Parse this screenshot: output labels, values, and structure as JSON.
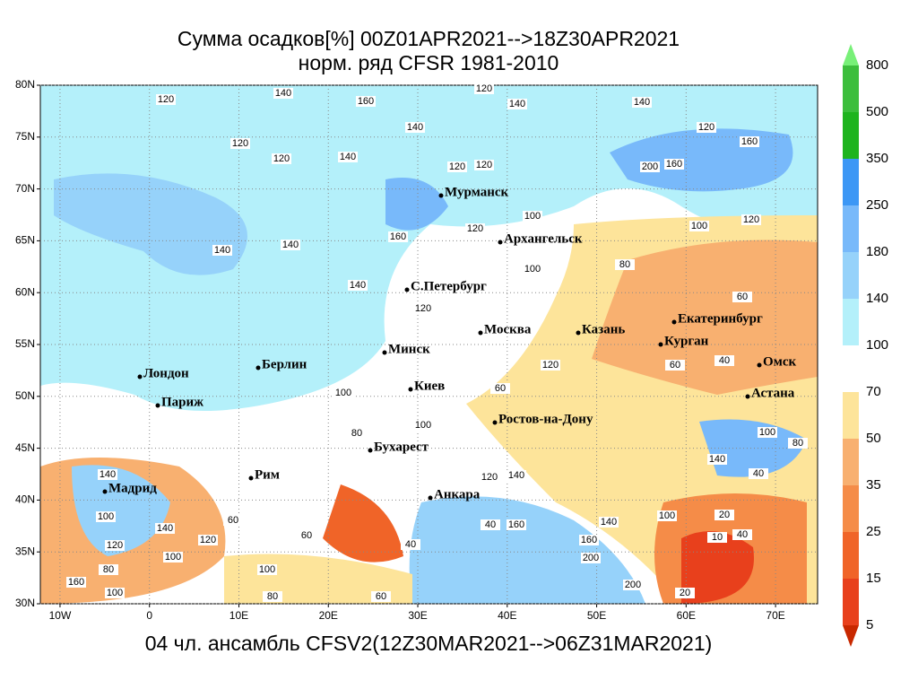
{
  "map": {
    "title": "Сумма осадков[%] 00Z01APR2021-->18Z30APR2021",
    "subtitle": "норм. ряд CFSR 1981-2010",
    "footer": "04 чл. ансамбль CFSV2(12Z30MAR2021-->06Z31MAR2021)",
    "xlim": [
      -12.2,
      74.7
    ],
    "ylim": [
      30,
      80
    ],
    "grid": true,
    "xticks": [
      {
        "value": -10,
        "label": "10W"
      },
      0,
      {
        "value": 10,
        "label": "10E"
      },
      {
        "value": 20,
        "label": "20E"
      },
      {
        "value": 30,
        "label": "30E"
      },
      {
        "value": 40,
        "label": "40E"
      },
      {
        "value": 50,
        "label": "50E"
      },
      {
        "value": 60,
        "label": "60E"
      },
      {
        "value": 70,
        "label": "70E"
      }
    ],
    "yticks": [
      {
        "value": 30,
        "label": "30N"
      },
      {
        "value": 35,
        "label": "35N"
      },
      {
        "value": 40,
        "label": "40N"
      },
      {
        "value": 45,
        "label": "45N"
      },
      {
        "value": 50,
        "label": "50N"
      },
      {
        "value": 55,
        "label": "55N"
      },
      {
        "value": 60,
        "label": "60N"
      },
      {
        "value": 65,
        "label": "65N"
      },
      {
        "value": 70,
        "label": "70N"
      },
      {
        "value": 75,
        "label": "75N"
      },
      {
        "value": 80,
        "label": "80N"
      }
    ],
    "cities": [
      "Мурманск",
      "Архангельск",
      "С.Петербург",
      "Москва",
      "Казань",
      "Екатеринбург",
      "Курган",
      "Омск",
      "Астана",
      "Минск",
      "Берлин",
      "Лондон",
      "Париж",
      "Киев",
      "Ростов-на-Дону",
      "Бухарест",
      "Рим",
      "Мадрид",
      "Анкара"
    ],
    "contour_labels": [
      120,
      140,
      160,
      120,
      140,
      140,
      140,
      120,
      120,
      140,
      120,
      120,
      200,
      160,
      120,
      160,
      100,
      100,
      120,
      120,
      160,
      140,
      140,
      100,
      80,
      60,
      120,
      140,
      120,
      60,
      40,
      60,
      100,
      100,
      80,
      140,
      120,
      140,
      100,
      140,
      120,
      120,
      100,
      80,
      160,
      100,
      160,
      40,
      160,
      200,
      200,
      140,
      100,
      20,
      10,
      40,
      20,
      100,
      80,
      140,
      40,
      100,
      80,
      60,
      40,
      60,
      60
    ],
    "colorbar": {
      "levels": [
        5,
        15,
        25,
        35,
        50,
        70,
        100,
        140,
        180,
        250,
        350,
        500,
        800
      ],
      "colors": [
        "#c82800",
        "#e8401c",
        "#f06428",
        "#f58c48",
        "#f8b070",
        "#fde49a",
        "#ffffff",
        "#b4f0fa",
        "#96d2fa",
        "#78b9fa",
        "#3c97f5",
        "#1eb41e",
        "#3cbe3c",
        "#78f078"
      ]
    }
  }
}
